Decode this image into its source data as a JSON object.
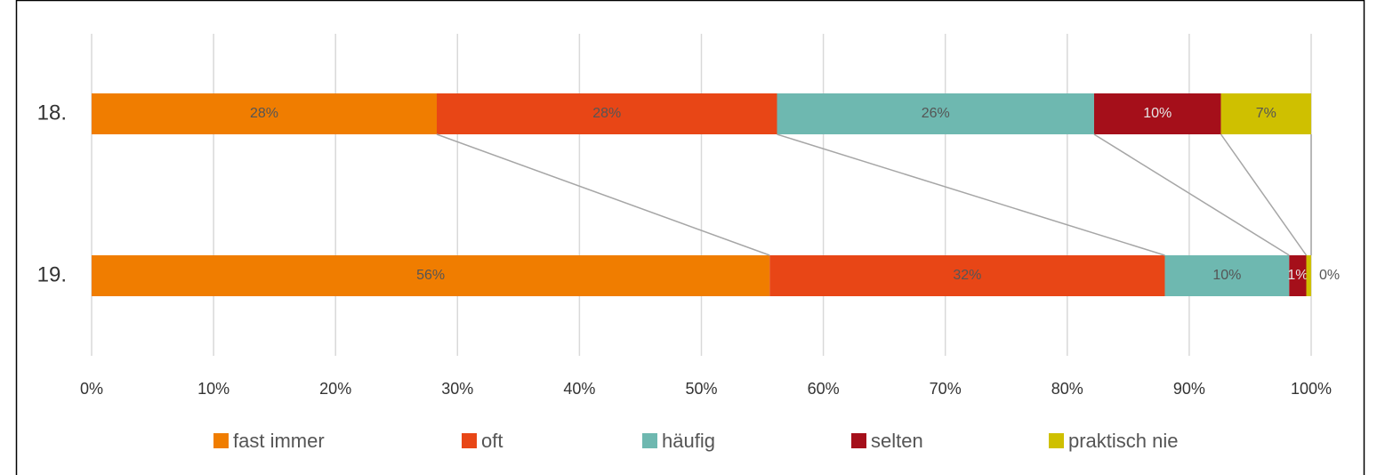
{
  "chart_data": {
    "type": "stacked-barh",
    "categories": [
      "18.",
      "19."
    ],
    "series": [
      {
        "name": "fast immer",
        "color": "#f07d00",
        "values": [
          28.3,
          55.6
        ],
        "value_labels": [
          "28%",
          "56%"
        ]
      },
      {
        "name": "oft",
        "color": "#e84616",
        "values": [
          27.9,
          32.4
        ],
        "value_labels": [
          "28%",
          "32%"
        ]
      },
      {
        "name": "häufig",
        "color": "#6eb8b0",
        "values": [
          26.0,
          10.2
        ],
        "value_labels": [
          "26%",
          "10%"
        ]
      },
      {
        "name": "selten",
        "color": "#a50f1a",
        "values": [
          10.4,
          1.4
        ],
        "value_labels": [
          "10%",
          "1%"
        ]
      },
      {
        "name": "praktisch nie",
        "color": "#cfc000",
        "values": [
          7.4,
          0.4
        ],
        "value_labels": [
          "7%",
          "0%"
        ]
      }
    ],
    "xlim": [
      0,
      100
    ],
    "xticks": [
      {
        "value": 0,
        "label": "0%"
      },
      {
        "value": 10,
        "label": "10%"
      },
      {
        "value": 20,
        "label": "20%"
      },
      {
        "value": 30,
        "label": "30%"
      },
      {
        "value": 40,
        "label": "40%"
      },
      {
        "value": 50,
        "label": "50%"
      },
      {
        "value": 60,
        "label": "60%"
      },
      {
        "value": 70,
        "label": "70%"
      },
      {
        "value": 80,
        "label": "80%"
      },
      {
        "value": 90,
        "label": "90%"
      },
      {
        "value": 100,
        "label": "100%"
      }
    ],
    "grid": true,
    "legend": "bottom",
    "series_lines": true
  }
}
